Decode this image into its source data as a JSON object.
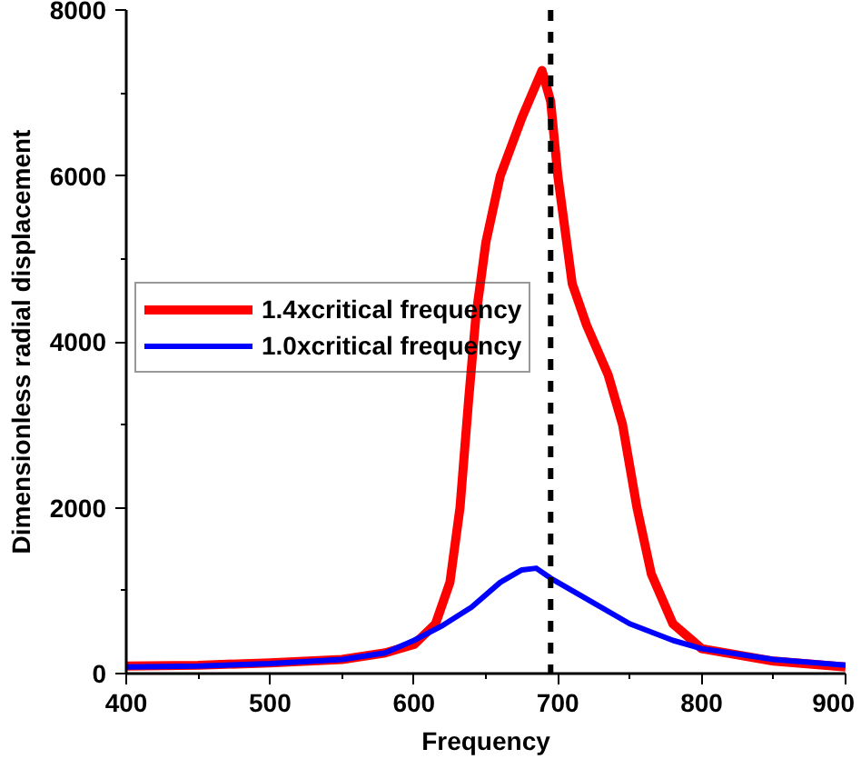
{
  "chart_data": {
    "type": "line",
    "xlabel": "Frequency",
    "ylabel": "Dimensionless radial displacement",
    "xlim": [
      400,
      900
    ],
    "ylim": [
      0,
      8000
    ],
    "xticks": [
      400,
      500,
      600,
      700,
      800,
      900
    ],
    "yticks": [
      0,
      2000,
      4000,
      6000,
      8000
    ],
    "grid": false,
    "legend": "top left",
    "line_style": "solid",
    "marker": "none",
    "series": [
      {
        "name": "1.4xcritical frequency",
        "color": "#ff0000",
        "x": [
          400,
          450,
          500,
          550,
          580,
          600,
          615,
          625,
          632,
          638,
          643,
          650,
          660,
          675,
          689,
          695,
          700,
          710,
          720,
          735,
          745,
          755,
          765,
          780,
          800,
          850,
          900
        ],
        "values": [
          90,
          100,
          130,
          170,
          250,
          350,
          600,
          1100,
          2000,
          3300,
          4300,
          5200,
          6000,
          6700,
          7270,
          6900,
          6000,
          4700,
          4200,
          3600,
          3000,
          2000,
          1200,
          600,
          300,
          150,
          80
        ]
      },
      {
        "name": "1.0xcritical frequency",
        "color": "#0000ff",
        "x": [
          400,
          450,
          500,
          550,
          580,
          600,
          620,
          640,
          660,
          675,
          685,
          695,
          720,
          750,
          780,
          800,
          850,
          900
        ],
        "values": [
          80,
          90,
          120,
          170,
          250,
          400,
          580,
          800,
          1100,
          1250,
          1270,
          1150,
          900,
          600,
          400,
          300,
          170,
          100
        ]
      }
    ],
    "ref_lines": [
      {
        "axis": "x",
        "value": 695,
        "color": "#000000",
        "line_style": "dashed"
      }
    ]
  }
}
